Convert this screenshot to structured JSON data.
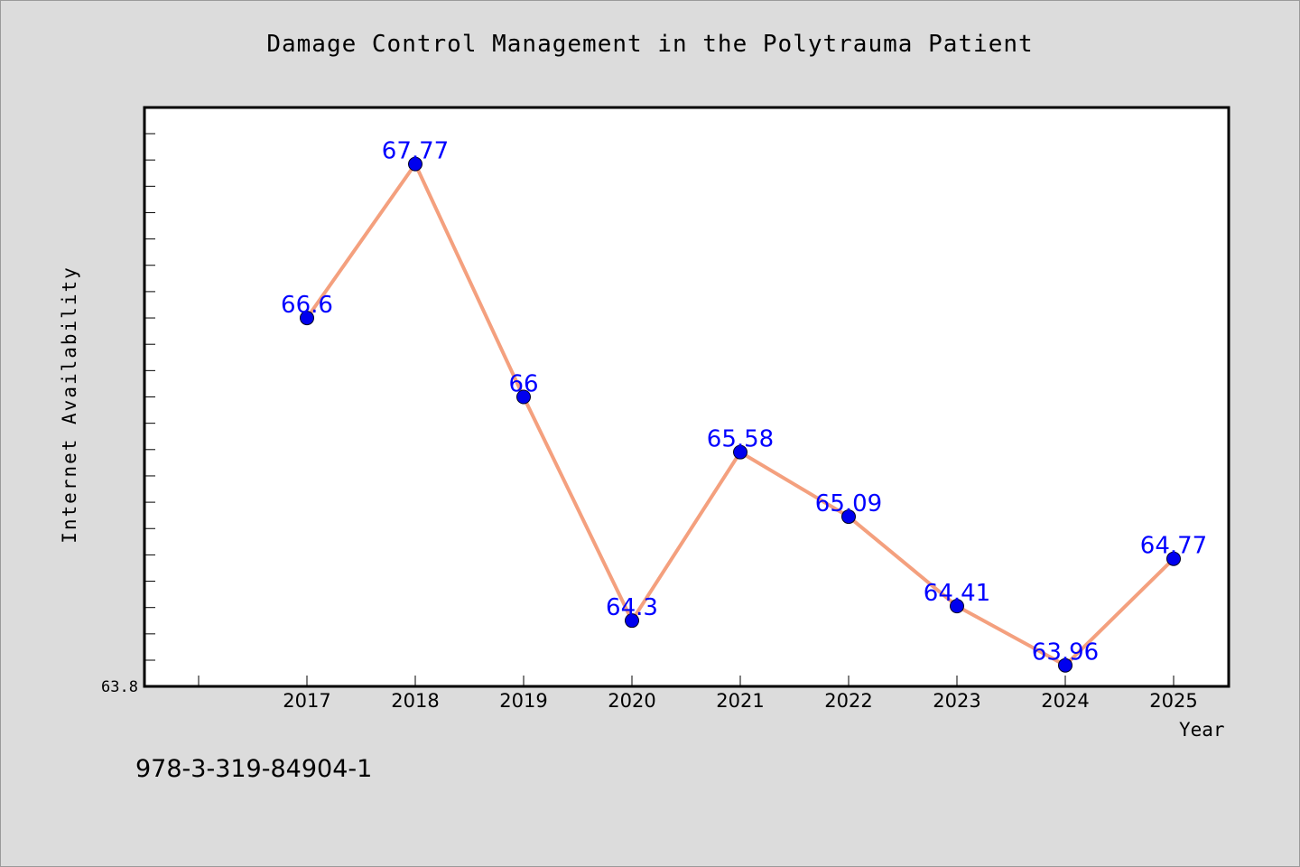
{
  "chart_data": {
    "type": "line",
    "title": "Damage Control Management in the Polytrauma Patient",
    "xlabel": "Year",
    "ylabel": "Internet Availability",
    "categories": [
      "2017",
      "2018",
      "2019",
      "2020",
      "2021",
      "2022",
      "2023",
      "2024",
      "2025"
    ],
    "series": [
      {
        "values": [
          66.6,
          67.77,
          66,
          64.3,
          65.58,
          65.09,
          64.41,
          63.96,
          64.77
        ],
        "labels": [
          "66.6",
          "67.77",
          "66",
          "64.3",
          "65.58",
          "65.09",
          "64.41",
          "63.96",
          "64.77"
        ]
      }
    ],
    "ylim": [
      63.8,
      68.2
    ],
    "y_tick_label": "63.8",
    "grid": false,
    "colors": {
      "line": "#f4a07e",
      "marker": "#0000ee",
      "label": "#0000ff",
      "plot_background": "#ffffff",
      "page_background": "#dcdcdc"
    }
  },
  "footer_text": "978-3-319-84904-1"
}
